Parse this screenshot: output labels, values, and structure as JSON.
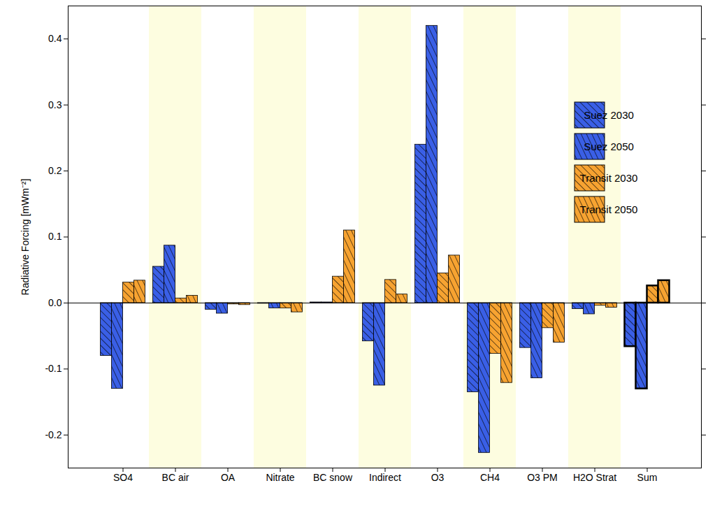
{
  "chart_data": {
    "type": "bar",
    "y_label": "Radiative Forcing [mWm⁻²]",
    "categories": [
      "SO4",
      "BC air",
      "OA",
      "Nitrate",
      "BC snow",
      "Indirect",
      "O3",
      "CH4",
      "O3 PM",
      "H2O Strat",
      "Sum"
    ],
    "series": [
      {
        "name": "Suez 2030",
        "color": "#3a5fe6",
        "values": [
          -0.08,
          0.055,
          -0.01,
          -0.001,
          0.001,
          -0.058,
          0.24,
          -0.135,
          -0.068,
          -0.009,
          -0.066
        ]
      },
      {
        "name": "Suez 2050",
        "color": "#3a5fe6",
        "values": [
          -0.13,
          0.087,
          -0.016,
          -0.008,
          0.001,
          -0.125,
          0.42,
          -0.227,
          -0.114,
          -0.017,
          -0.13
        ]
      },
      {
        "name": "Transit 2030",
        "color": "#f7a331",
        "values": [
          0.031,
          0.007,
          -0.002,
          -0.008,
          0.04,
          0.035,
          0.045,
          -0.077,
          -0.038,
          -0.004,
          0.026
        ]
      },
      {
        "name": "Transit 2050",
        "color": "#f7a331",
        "values": [
          0.034,
          0.011,
          -0.003,
          -0.014,
          0.11,
          0.013,
          0.072,
          -0.121,
          -0.06,
          -0.007,
          0.034
        ]
      }
    ],
    "ylim": [
      -0.25,
      0.45
    ],
    "yticks": [
      -0.2,
      -0.1,
      {
        "value": 0,
        "label": "0.0"
      },
      0.1,
      0.2,
      0.3,
      0.4
    ],
    "legend": "top right",
    "grid": false
  }
}
